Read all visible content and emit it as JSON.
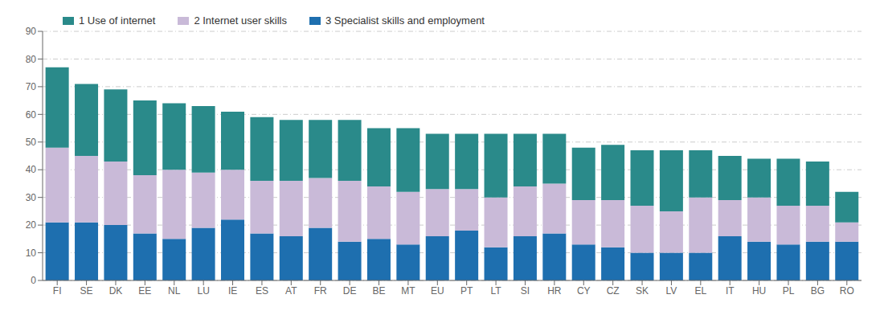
{
  "chart_data": {
    "type": "bar",
    "stacked": true,
    "categories": [
      "FI",
      "SE",
      "DK",
      "EE",
      "NL",
      "LU",
      "IE",
      "ES",
      "AT",
      "FR",
      "DE",
      "BE",
      "MT",
      "EU",
      "PT",
      "LT",
      "SI",
      "HR",
      "CY",
      "CZ",
      "SK",
      "LV",
      "EL",
      "IT",
      "HU",
      "PL",
      "BG",
      "RO"
    ],
    "series": [
      {
        "name": "1 Use of internet",
        "color": "#2A8A8A",
        "values": [
          29,
          26,
          26,
          27,
          24,
          24,
          21,
          23,
          22,
          21,
          22,
          21,
          23,
          20,
          20,
          23,
          19,
          18,
          19,
          20,
          20,
          22,
          17,
          16,
          14,
          17,
          16,
          11
        ]
      },
      {
        "name": "2 Internet user skills",
        "color": "#C9BAD8",
        "values": [
          27,
          24,
          23,
          21,
          25,
          20,
          18,
          19,
          20,
          18,
          22,
          19,
          19,
          17,
          15,
          18,
          18,
          18,
          16,
          17,
          17,
          15,
          20,
          13,
          16,
          14,
          13,
          7
        ]
      },
      {
        "name": "3 Specialist skills and employment",
        "color": "#1E6FAF",
        "values": [
          21,
          21,
          20,
          17,
          15,
          19,
          22,
          17,
          16,
          19,
          14,
          15,
          13,
          16,
          18,
          12,
          16,
          17,
          13,
          12,
          10,
          10,
          10,
          16,
          14,
          13,
          14,
          14
        ]
      }
    ],
    "ylim": [
      0,
      90
    ],
    "yticks": [
      0,
      10,
      20,
      30,
      40,
      50,
      60,
      70,
      80,
      90
    ],
    "grid": true,
    "legend": "upper left"
  }
}
